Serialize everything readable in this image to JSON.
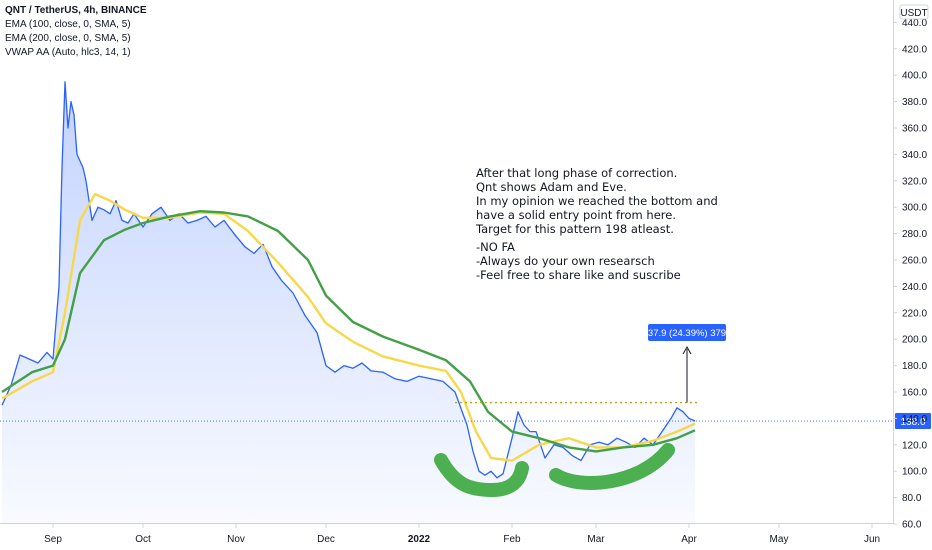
{
  "header": {
    "symbol_line": "QNT / TetherUS, 4h, BINANCE",
    "indicators": [
      "EMA (100, close, 0, SMA, 5)",
      "EMA (200, close, 0, SMA, 5)",
      "VWAP AA (Auto, hlc3, 14, 1)"
    ]
  },
  "currency_badge": "USDT",
  "last_price_label": "138.0",
  "annotation_label": "37.9 (24.39%) 379",
  "note_lines": [
    "After that long phase of correction.",
    "Qnt shows Adam and Eve.",
    "In my opinion we reached the bottom and",
    "have a solid entry point from here.",
    "Target for this pattern 198 atleast.",
    "",
    "-NO FA",
    "-Always do your own researsch",
    "-Feel free to share like and suscribe"
  ],
  "chart_data": {
    "type": "line",
    "title": "QNT / TetherUS, 4h, BINANCE",
    "y_axis_unit": "USDT",
    "ylim": [
      60,
      440
    ],
    "y_ticks": [
      60,
      80,
      100,
      120,
      140,
      160,
      180,
      200,
      220,
      240,
      260,
      280,
      300,
      320,
      340,
      360,
      380,
      400,
      420,
      440
    ],
    "x_ticks": [
      "Sep",
      "Oct",
      "Nov",
      "Dec",
      "2022",
      "Feb",
      "Mar",
      "Apr",
      "May",
      "Jun"
    ],
    "x_tick_dates": [
      "2021-09-01",
      "2021-10-01",
      "2021-11-01",
      "2021-12-01",
      "2022-01-01",
      "2022-02-01",
      "2022-03-01",
      "2022-04-01",
      "2022-05-01",
      "2022-06-01"
    ],
    "series": [
      {
        "name": "QNT / TetherUS",
        "color": "#2962ff",
        "x": [
          "2021-08-15",
          "2021-08-18",
          "2021-08-21",
          "2021-08-24",
          "2021-08-27",
          "2021-08-30",
          "2021-09-01",
          "2021-09-03",
          "2021-09-04",
          "2021-09-05",
          "2021-09-06",
          "2021-09-07",
          "2021-09-08",
          "2021-09-09",
          "2021-09-11",
          "2021-09-12",
          "2021-09-14",
          "2021-09-16",
          "2021-09-18",
          "2021-09-20",
          "2021-09-22",
          "2021-09-24",
          "2021-09-26",
          "2021-09-28",
          "2021-10-01",
          "2021-10-04",
          "2021-10-07",
          "2021-10-10",
          "2021-10-13",
          "2021-10-16",
          "2021-10-19",
          "2021-10-22",
          "2021-10-25",
          "2021-10-28",
          "2021-11-01",
          "2021-11-04",
          "2021-11-07",
          "2021-11-10",
          "2021-11-13",
          "2021-11-16",
          "2021-11-20",
          "2021-11-24",
          "2021-11-28",
          "2021-12-01",
          "2021-12-04",
          "2021-12-07",
          "2021-12-10",
          "2021-12-13",
          "2021-12-16",
          "2021-12-20",
          "2021-12-24",
          "2021-12-28",
          "2022-01-01",
          "2022-01-05",
          "2022-01-09",
          "2022-01-13",
          "2022-01-17",
          "2022-01-19",
          "2022-01-21",
          "2022-01-23",
          "2022-01-25",
          "2022-01-27",
          "2022-01-29",
          "2022-02-01",
          "2022-02-03",
          "2022-02-05",
          "2022-02-07",
          "2022-02-09",
          "2022-02-12",
          "2022-02-15",
          "2022-02-18",
          "2022-02-21",
          "2022-02-24",
          "2022-02-27",
          "2022-03-02",
          "2022-03-05",
          "2022-03-08",
          "2022-03-11",
          "2022-03-14",
          "2022-03-17",
          "2022-03-20",
          "2022-03-23",
          "2022-03-26",
          "2022-03-28",
          "2022-03-30",
          "2022-04-01",
          "2022-04-03"
        ],
        "values": [
          150,
          165,
          188,
          185,
          182,
          190,
          185,
          240,
          330,
          395,
          360,
          380,
          370,
          340,
          330,
          320,
          290,
          300,
          298,
          295,
          305,
          290,
          288,
          295,
          285,
          295,
          300,
          290,
          295,
          288,
          290,
          293,
          285,
          290,
          278,
          270,
          265,
          272,
          255,
          245,
          235,
          218,
          205,
          180,
          175,
          180,
          178,
          182,
          176,
          175,
          170,
          168,
          172,
          170,
          168,
          160,
          135,
          115,
          100,
          97,
          100,
          95,
          98,
          125,
          145,
          135,
          130,
          130,
          110,
          120,
          118,
          112,
          108,
          120,
          122,
          120,
          125,
          122,
          118,
          125,
          120,
          130,
          140,
          148,
          145,
          140,
          138
        ]
      },
      {
        "name": "EMA (100, close, 0, SMA, 5)",
        "color": "#f7d84a",
        "x": [
          "2021-08-15",
          "2021-08-25",
          "2021-09-01",
          "2021-09-05",
          "2021-09-10",
          "2021-09-15",
          "2021-09-20",
          "2021-09-25",
          "2021-10-01",
          "2021-10-10",
          "2021-10-20",
          "2021-10-28",
          "2021-11-05",
          "2021-11-15",
          "2021-11-25",
          "2021-12-01",
          "2021-12-10",
          "2021-12-20",
          "2022-01-01",
          "2022-01-10",
          "2022-01-15",
          "2022-01-20",
          "2022-01-25",
          "2022-02-01",
          "2022-02-10",
          "2022-02-20",
          "2022-03-01",
          "2022-03-10",
          "2022-03-20",
          "2022-03-28",
          "2022-04-03"
        ],
        "values": [
          155,
          168,
          175,
          220,
          290,
          310,
          305,
          298,
          292,
          292,
          296,
          295,
          282,
          258,
          232,
          212,
          198,
          187,
          180,
          176,
          160,
          130,
          110,
          108,
          120,
          125,
          118,
          118,
          123,
          130,
          136
        ]
      },
      {
        "name": "EMA (200, close, 0, SMA, 5)",
        "color": "#43a047",
        "x": [
          "2021-08-15",
          "2021-08-25",
          "2021-09-01",
          "2021-09-05",
          "2021-09-10",
          "2021-09-18",
          "2021-09-25",
          "2021-10-01",
          "2021-10-10",
          "2021-10-20",
          "2021-10-28",
          "2021-11-05",
          "2021-11-15",
          "2021-11-25",
          "2021-12-01",
          "2021-12-10",
          "2021-12-20",
          "2022-01-01",
          "2022-01-10",
          "2022-01-18",
          "2022-01-24",
          "2022-02-01",
          "2022-02-10",
          "2022-02-20",
          "2022-03-01",
          "2022-03-10",
          "2022-03-20",
          "2022-03-28",
          "2022-04-03"
        ],
        "values": [
          160,
          175,
          180,
          200,
          250,
          275,
          283,
          288,
          293,
          297,
          296,
          293,
          282,
          260,
          233,
          213,
          202,
          192,
          184,
          168,
          145,
          130,
          125,
          118,
          115,
          118,
          120,
          125,
          131
        ]
      }
    ],
    "last_price": 138.0,
    "breakout_line": 152,
    "target_label": "37.9 (24.39%) 379"
  }
}
